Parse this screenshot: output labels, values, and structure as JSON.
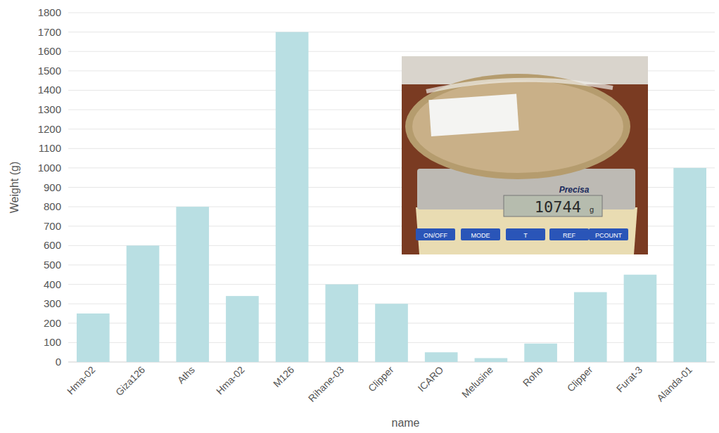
{
  "chart_data": {
    "type": "bar",
    "x_label": "name",
    "y_label": "Weight (g)",
    "categories": [
      "Hma-02",
      "Giza126",
      "Aths",
      "Hma-02",
      "M126",
      "Rihane-03",
      "Clipper",
      "ICARO",
      "Melusine",
      "Roho",
      "Clipper",
      "Furat-3",
      "Alanda-01"
    ],
    "values": [
      250,
      600,
      800,
      340,
      1700,
      400,
      300,
      50,
      20,
      95,
      360,
      450,
      1000
    ],
    "color": "#b9dfe3",
    "ylim": [
      0,
      1800
    ],
    "yticks": [
      0,
      100,
      200,
      300,
      400,
      500,
      600,
      700,
      800,
      900,
      1000,
      1100,
      1200,
      1300,
      1400,
      1500,
      1600,
      1700,
      1800
    ],
    "grid": true,
    "annotations": [
      "Precisa",
      "10744",
      "g",
      "ON/OFF",
      "MODE",
      "T",
      "REF",
      "PCOUNT"
    ]
  }
}
